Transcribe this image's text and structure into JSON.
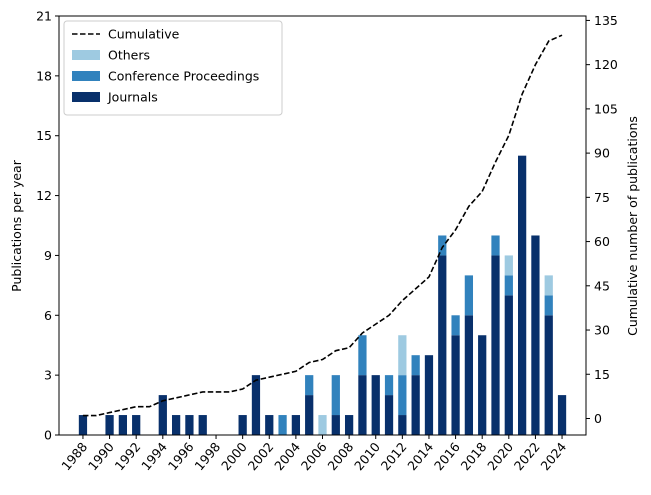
{
  "chart_data": {
    "type": "bar",
    "stacked": true,
    "title": "",
    "xlabel": "",
    "ylabel": "Publications per year",
    "ylabel_right": "Cumulative number of publications",
    "ylim": [
      0,
      21
    ],
    "ylim_right": [
      -5.6,
      136.5
    ],
    "yticks": [
      0,
      3,
      6,
      9,
      12,
      15,
      18,
      21
    ],
    "yticks_right": [
      0,
      15,
      30,
      45,
      60,
      75,
      90,
      105,
      120,
      135
    ],
    "xticks": [
      "1988",
      "1990",
      "1992",
      "1994",
      "1996",
      "1998",
      "2000",
      "2002",
      "2004",
      "2006",
      "2008",
      "2010",
      "2012",
      "2014",
      "2016",
      "2018",
      "2020",
      "2022",
      "2024"
    ],
    "x_rotation_deg": 50,
    "grid": false,
    "legend_position": "top-left",
    "categories": [
      1988,
      1989,
      1990,
      1991,
      1992,
      1993,
      1994,
      1995,
      1996,
      1997,
      1998,
      1999,
      2000,
      2001,
      2002,
      2003,
      2004,
      2005,
      2006,
      2007,
      2008,
      2009,
      2010,
      2011,
      2012,
      2013,
      2014,
      2015,
      2016,
      2017,
      2018,
      2019,
      2020,
      2021,
      2022,
      2023,
      2024
    ],
    "series": [
      {
        "name": "Journals",
        "color": "#08306b",
        "values": [
          1,
          0,
          1,
          1,
          1,
          0,
          2,
          1,
          1,
          1,
          0,
          0,
          1,
          3,
          1,
          0,
          1,
          2,
          0,
          1,
          1,
          3,
          3,
          2,
          1,
          3,
          4,
          9,
          5,
          6,
          5,
          9,
          7,
          14,
          10,
          6,
          2
        ]
      },
      {
        "name": "Conference Proceedings",
        "color": "#3182bd",
        "values": [
          0,
          0,
          0,
          0,
          0,
          0,
          0,
          0,
          0,
          0,
          0,
          0,
          0,
          0,
          0,
          1,
          0,
          1,
          0,
          2,
          0,
          2,
          0,
          1,
          2,
          1,
          0,
          1,
          1,
          2,
          0,
          1,
          1,
          0,
          0,
          1,
          0
        ]
      },
      {
        "name": "Others",
        "color": "#9ecae1",
        "values": [
          0,
          0,
          0,
          0,
          0,
          0,
          0,
          0,
          0,
          0,
          0,
          0,
          0,
          0,
          0,
          0,
          0,
          0,
          1,
          0,
          0,
          0,
          0,
          0,
          2,
          0,
          0,
          0,
          0,
          0,
          0,
          0,
          1,
          0,
          0,
          1,
          0
        ]
      }
    ],
    "cumulative": {
      "name": "Cumulative",
      "color": "#000000",
      "style": "dashed",
      "values": [
        1,
        1,
        2,
        3,
        4,
        4,
        6,
        7,
        8,
        9,
        9,
        9,
        10,
        13,
        14,
        15,
        16,
        19,
        20,
        23,
        24,
        29,
        32,
        35,
        40,
        44,
        48,
        58,
        64,
        72,
        77,
        87,
        96,
        110,
        120,
        128,
        130
      ]
    },
    "legend": [
      "Cumulative",
      "Others",
      "Conference Proceedings",
      "Journals"
    ]
  }
}
